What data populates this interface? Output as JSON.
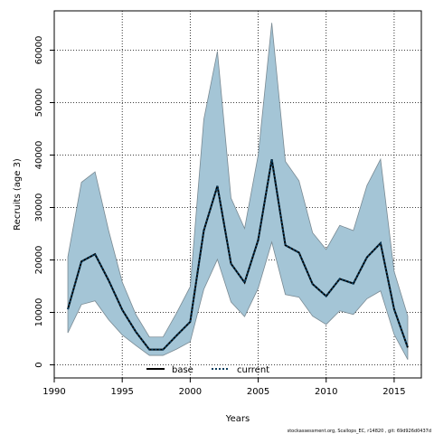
{
  "chart_data": {
    "type": "area",
    "title": "",
    "xlabel": "Years",
    "ylabel": "Recruits (age 3)",
    "xlim": [
      1990,
      2017
    ],
    "ylim": [
      -2500,
      67500
    ],
    "x_ticks": [
      1990,
      1995,
      2000,
      2005,
      2010,
      2015
    ],
    "y_ticks": [
      0,
      10000,
      20000,
      30000,
      40000,
      50000,
      60000
    ],
    "grid": true,
    "legend_position": "bottom-center",
    "x": [
      1991,
      1992,
      1993,
      1994,
      1995,
      1996,
      1997,
      1998,
      1999,
      2000,
      2001,
      2002,
      2003,
      2004,
      2005,
      2006,
      2007,
      2008,
      2009,
      2010,
      2011,
      2012,
      2013,
      2014,
      2015,
      2016
    ],
    "band": {
      "color": "#a4c5d6",
      "edge_color": "#7a8a93",
      "upper": [
        20600,
        34800,
        36800,
        25600,
        15800,
        9600,
        5300,
        5300,
        9900,
        14900,
        46800,
        59800,
        31800,
        26000,
        40000,
        65200,
        38800,
        35100,
        25200,
        22000,
        26600,
        25600,
        34200,
        39200,
        17800,
        9300
      ],
      "lower": [
        6100,
        11500,
        12200,
        8600,
        5700,
        3700,
        1800,
        1800,
        3000,
        4400,
        14400,
        20100,
        12000,
        9200,
        14600,
        23400,
        13400,
        12900,
        9300,
        7700,
        10300,
        9600,
        12600,
        14100,
        5800,
        1000
      ]
    },
    "series": [
      {
        "name": "base",
        "color": "#000000",
        "style": "solid",
        "values": [
          10600,
          19700,
          21100,
          16100,
          10500,
          6300,
          2900,
          2900,
          5600,
          8200,
          25600,
          34100,
          19300,
          15700,
          23800,
          39200,
          22800,
          21400,
          15400,
          13100,
          16400,
          15500,
          20500,
          23200,
          10600,
          3300
        ]
      },
      {
        "name": "current",
        "color": "#0b3d5e",
        "style": "dotted",
        "values": [
          10600,
          19700,
          21100,
          16100,
          10500,
          6300,
          2900,
          2900,
          5600,
          8200,
          25600,
          34100,
          19300,
          15700,
          23800,
          39200,
          22800,
          21400,
          15400,
          13100,
          16400,
          15500,
          20500,
          23200,
          10600,
          3300
        ]
      }
    ]
  },
  "footer": "stockassessment.org, Scallops_EC, r14820 , git: 69d926d0437d"
}
